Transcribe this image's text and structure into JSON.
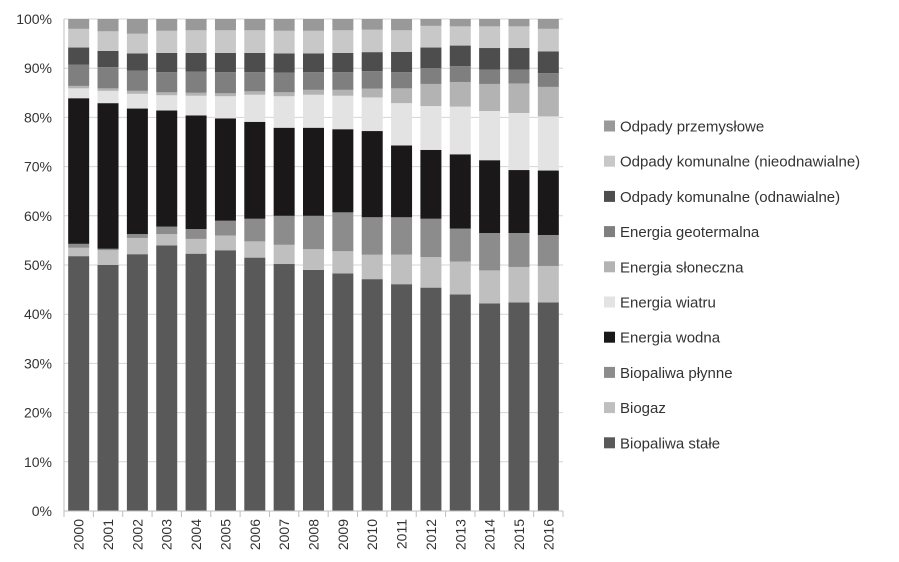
{
  "chart_data": {
    "type": "bar",
    "stacked": true,
    "normalized": true,
    "title": "",
    "xlabel": "",
    "ylabel": "",
    "ylim": [
      0,
      100
    ],
    "y_ticks": [
      "0%",
      "10%",
      "20%",
      "30%",
      "40%",
      "50%",
      "60%",
      "70%",
      "80%",
      "90%",
      "100%"
    ],
    "grid": true,
    "legend_position": "right",
    "categories": [
      "2000",
      "2001",
      "2002",
      "2003",
      "2004",
      "2005",
      "2006",
      "2007",
      "2008",
      "2009",
      "2010",
      "2011",
      "2012",
      "2013",
      "2014",
      "2015",
      "2016"
    ],
    "series": [
      {
        "name": "Biopaliwa stałe",
        "color": "#595959",
        "values": [
          51.8,
          50.0,
          52.2,
          54.0,
          52.3,
          53.0,
          51.5,
          50.2,
          49.0,
          48.3,
          47.6,
          46.1,
          45.4,
          44.0,
          42.2,
          42.4,
          42.4
        ]
      },
      {
        "name": "Biogaz",
        "color": "#bfbfbf",
        "values": [
          1.7,
          3.0,
          3.3,
          2.3,
          3.0,
          3.0,
          3.3,
          3.9,
          4.2,
          4.5,
          5.0,
          6.0,
          6.2,
          6.7,
          6.7,
          7.2,
          7.4
        ]
      },
      {
        "name": "Biopaliwa płynne",
        "color": "#8c8c8c",
        "values": [
          0.8,
          0.3,
          0.8,
          1.5,
          2.0,
          3.0,
          4.6,
          5.9,
          6.8,
          7.9,
          7.7,
          7.6,
          7.8,
          6.7,
          7.6,
          6.9,
          6.3
        ]
      },
      {
        "name": "Energia wodna",
        "color": "#1a1818",
        "values": [
          29.6,
          29.6,
          25.5,
          23.6,
          23.1,
          20.8,
          19.7,
          17.9,
          17.9,
          16.9,
          17.7,
          14.6,
          14.0,
          15.1,
          14.8,
          12.8,
          13.1
        ]
      },
      {
        "name": "Energia wiatru",
        "color": "#e3e3e3",
        "values": [
          2.0,
          2.5,
          3.0,
          3.1,
          4.0,
          4.5,
          5.5,
          6.4,
          6.7,
          6.8,
          6.9,
          8.6,
          8.9,
          9.7,
          10.0,
          11.6,
          11.0
        ]
      },
      {
        "name": "Energia słoneczna",
        "color": "#b3b3b3",
        "values": [
          0.5,
          0.5,
          0.6,
          0.6,
          0.6,
          0.6,
          0.7,
          0.8,
          1.0,
          1.2,
          1.8,
          3.0,
          4.5,
          5.0,
          5.5,
          6.0,
          6.0
        ]
      },
      {
        "name": "Energia geotermalna",
        "color": "#7f7f7f",
        "values": [
          4.3,
          4.3,
          4.1,
          4.1,
          4.3,
          4.3,
          3.9,
          4.0,
          3.6,
          3.6,
          3.6,
          3.3,
          3.2,
          3.2,
          2.9,
          2.8,
          2.8
        ]
      },
      {
        "name": "Odpady komunalne (odnawialne)",
        "color": "#4d4d4d",
        "values": [
          3.5,
          3.3,
          3.5,
          3.9,
          3.8,
          3.9,
          3.9,
          3.9,
          3.8,
          3.9,
          3.9,
          4.1,
          4.2,
          4.2,
          4.4,
          4.4,
          4.4
        ]
      },
      {
        "name": "Odpady komunalne (nieodnawialne)",
        "color": "#c8c8c8",
        "values": [
          3.8,
          4.0,
          4.0,
          4.5,
          4.6,
          4.6,
          4.6,
          4.6,
          4.6,
          4.6,
          4.6,
          4.4,
          4.4,
          3.9,
          4.4,
          4.4,
          4.6
        ]
      },
      {
        "name": "Odpady przemysłowe",
        "color": "#999999",
        "values": [
          2.0,
          2.5,
          3.0,
          2.4,
          2.3,
          2.3,
          2.3,
          2.4,
          2.4,
          2.3,
          2.2,
          2.3,
          1.4,
          1.5,
          1.5,
          1.5,
          2.0
        ]
      }
    ]
  }
}
